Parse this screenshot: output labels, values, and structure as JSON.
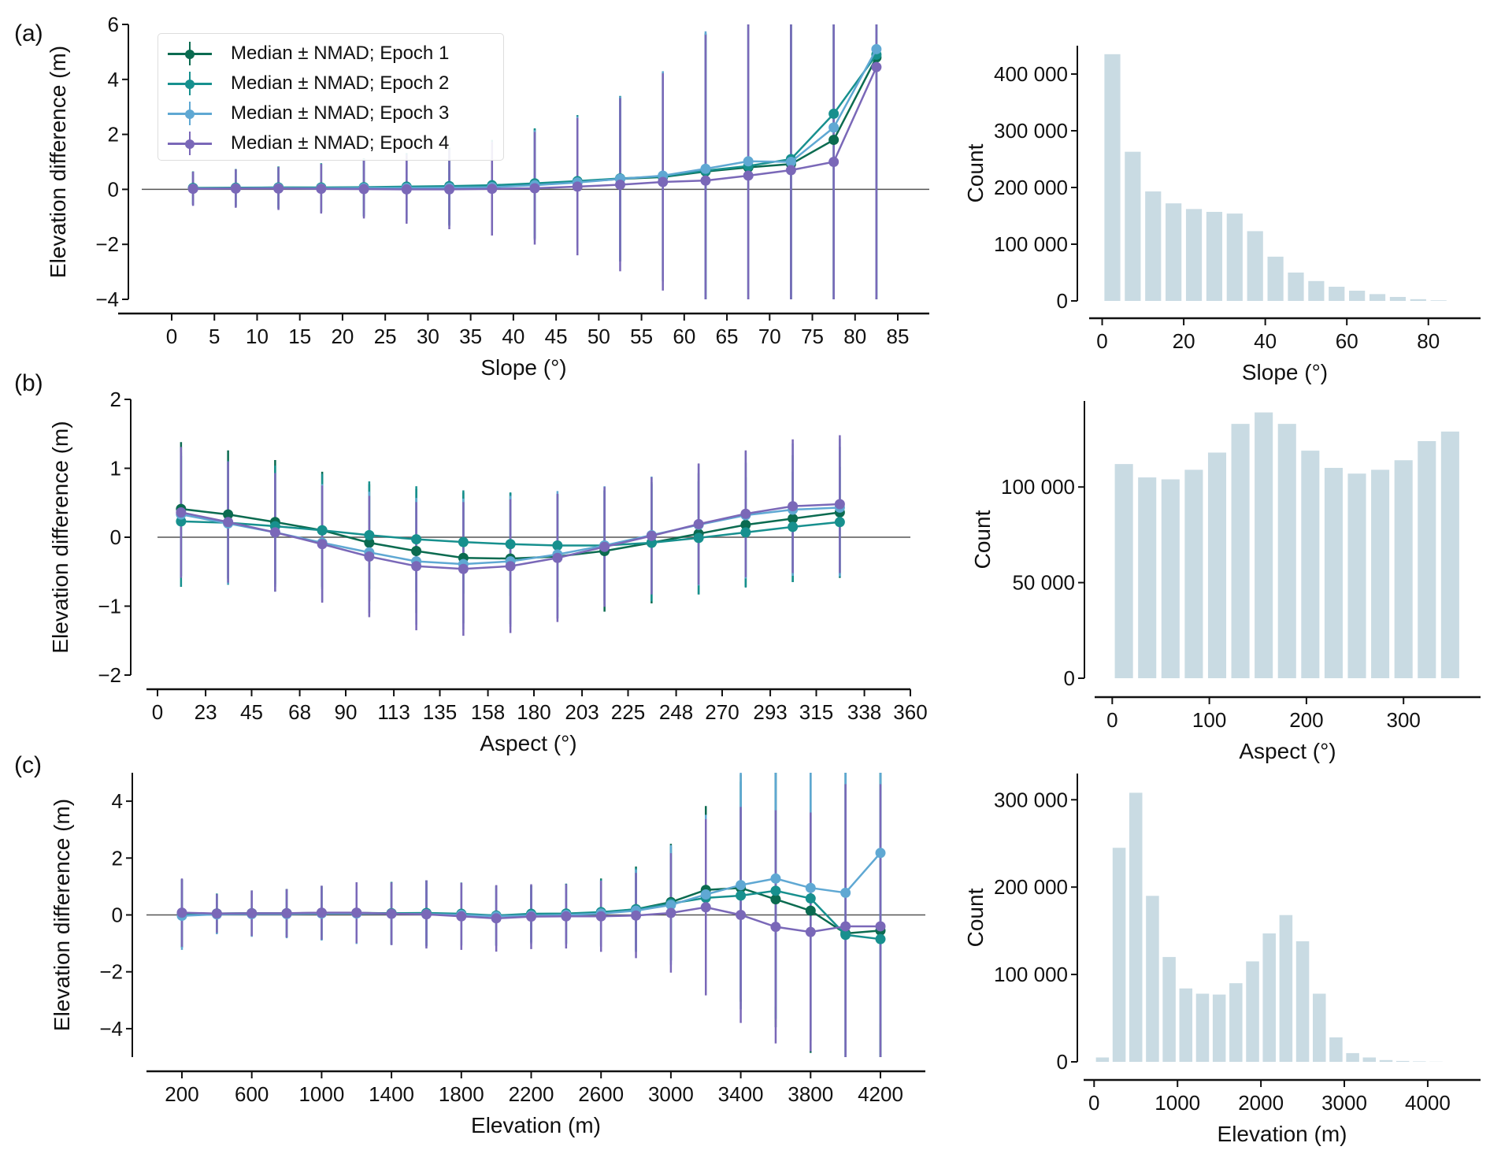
{
  "panel_labels": [
    "(a)",
    "(b)",
    "(c)"
  ],
  "colors": {
    "epoch1": "#0b6b50",
    "epoch2": "#17908e",
    "epoch3": "#5fa8d3",
    "epoch4": "#7a68b8",
    "bars": "#c9dbe3",
    "zero_line": "#555555"
  },
  "legend": {
    "position": "top-left of panel (a)",
    "items": [
      "Median ± NMAD; Epoch 1",
      "Median ± NMAD; Epoch 2",
      "Median ± NMAD; Epoch 3",
      "Median ± NMAD; Epoch 4"
    ]
  },
  "chart_data": [
    {
      "type": "line",
      "panel": "(a)",
      "xlabel": "Slope (°)",
      "ylabel": "Elevation difference (m)",
      "xlim": [
        0,
        85
      ],
      "ylim": [
        -4,
        6
      ],
      "xticks": [
        "0",
        "5",
        "10",
        "15",
        "20",
        "25",
        "30",
        "35",
        "40",
        "45",
        "50",
        "55",
        "60",
        "65",
        "70",
        "75",
        "80",
        "85"
      ],
      "yticks": [
        "-4",
        "-2",
        "0",
        "2",
        "4",
        "6"
      ],
      "x": [
        2.5,
        7.5,
        12.5,
        17.5,
        22.5,
        27.5,
        32.5,
        37.5,
        42.5,
        47.5,
        52.5,
        57.5,
        62.5,
        67.5,
        72.5,
        77.5,
        82.5
      ],
      "series": [
        {
          "name": "Median ± NMAD; Epoch 1",
          "values": [
            0.05,
            0.05,
            0.07,
            0.06,
            0.07,
            0.08,
            0.1,
            0.13,
            0.2,
            0.27,
            0.38,
            0.45,
            0.65,
            0.8,
            0.92,
            1.8,
            4.8
          ],
          "nmad": [
            0.6,
            0.68,
            0.76,
            0.88,
            1.05,
            1.22,
            1.4,
            1.65,
            2.0,
            2.4,
            3.0,
            3.8,
            5.0,
            6,
            7,
            8,
            9
          ]
        },
        {
          "name": "Median ± NMAD; Epoch 2",
          "values": [
            0.05,
            0.06,
            0.07,
            0.07,
            0.08,
            0.1,
            0.12,
            0.15,
            0.22,
            0.3,
            0.4,
            0.47,
            0.68,
            0.85,
            1.1,
            2.75,
            4.9
          ],
          "nmad": [
            0.6,
            0.68,
            0.76,
            0.88,
            1.05,
            1.22,
            1.4,
            1.65,
            2.0,
            2.4,
            3.0,
            3.8,
            5.0,
            6,
            7,
            8,
            9
          ]
        },
        {
          "name": "Median ± NMAD; Epoch 3",
          "values": [
            0.03,
            0.04,
            0.05,
            0.04,
            0.05,
            0.05,
            0.06,
            0.08,
            0.15,
            0.25,
            0.38,
            0.5,
            0.75,
            1.02,
            1.0,
            2.25,
            5.1
          ],
          "nmad": [
            0.6,
            0.68,
            0.76,
            0.88,
            1.05,
            1.22,
            1.4,
            1.65,
            2.0,
            2.4,
            3.0,
            3.8,
            5.0,
            6,
            7,
            8,
            9
          ]
        },
        {
          "name": "Median ± NMAD; Epoch 4",
          "values": [
            0.02,
            0.03,
            0.03,
            0.02,
            0.01,
            0.0,
            0.0,
            0.02,
            0.04,
            0.1,
            0.17,
            0.27,
            0.32,
            0.5,
            0.7,
            1.0,
            4.45
          ],
          "nmad": [
            0.62,
            0.7,
            0.78,
            0.9,
            1.07,
            1.25,
            1.45,
            1.7,
            2.05,
            2.5,
            3.15,
            3.95,
            5.3,
            6.5,
            7.5,
            8.5,
            9.5
          ]
        }
      ]
    },
    {
      "type": "bar",
      "panel": "(a)",
      "xlabel": "Slope (°)",
      "ylabel": "Count",
      "xlim": [
        -3,
        87
      ],
      "ylim": [
        0,
        450000
      ],
      "xticks": [
        "0",
        "20",
        "40",
        "60",
        "80"
      ],
      "xtick_values": [
        0,
        20,
        40,
        60,
        80
      ],
      "yticks": [
        "0",
        "100 000",
        "200 000",
        "300 000",
        "400 000"
      ],
      "ytick_values": [
        0,
        100000,
        200000,
        300000,
        400000
      ],
      "bin_width": 5,
      "categories": [
        2.5,
        7.5,
        12.5,
        17.5,
        22.5,
        27.5,
        32.5,
        37.5,
        42.5,
        47.5,
        52.5,
        57.5,
        62.5,
        67.5,
        72.5,
        77.5,
        82.5
      ],
      "values": [
        435000,
        263000,
        193000,
        172000,
        162000,
        157000,
        154000,
        123000,
        78000,
        50000,
        35000,
        25000,
        18000,
        12000,
        7000,
        3000,
        1000
      ]
    },
    {
      "type": "line",
      "panel": "(b)",
      "xlabel": "Aspect (°)",
      "ylabel": "Elevation difference (m)",
      "xlim": [
        0,
        360
      ],
      "ylim": [
        -2,
        2
      ],
      "xticks": [
        "0",
        "23",
        "45",
        "68",
        "90",
        "113",
        "135",
        "158",
        "180",
        "203",
        "225",
        "248",
        "270",
        "293",
        "315",
        "338",
        "360"
      ],
      "yticks": [
        "-2",
        "-1",
        "0",
        "1",
        "2"
      ],
      "x": [
        11.25,
        33.75,
        56.25,
        78.75,
        101.25,
        123.75,
        146.25,
        168.75,
        191.25,
        213.75,
        236.25,
        258.75,
        281.25,
        303.75,
        326.25
      ],
      "series": [
        {
          "name": "Median ± NMAD; Epoch 1",
          "values": [
            0.41,
            0.33,
            0.22,
            0.1,
            -0.08,
            -0.2,
            -0.3,
            -0.31,
            -0.28,
            -0.2,
            -0.08,
            0.05,
            0.18,
            0.27,
            0.36
          ],
          "nmad": [
            0.97,
            0.93,
            0.9,
            0.85,
            0.85,
            0.9,
            0.95,
            0.95,
            0.9,
            0.88,
            0.88,
            0.88,
            0.9,
            0.92,
            0.95
          ]
        },
        {
          "name": "Median ± NMAD; Epoch 2",
          "values": [
            0.23,
            0.21,
            0.16,
            0.1,
            0.03,
            -0.03,
            -0.07,
            -0.1,
            -0.12,
            -0.12,
            -0.08,
            -0.01,
            0.07,
            0.15,
            0.22
          ],
          "nmad": [
            0.95,
            0.9,
            0.88,
            0.82,
            0.78,
            0.77,
            0.75,
            0.75,
            0.75,
            0.8,
            0.85,
            0.82,
            0.8,
            0.8,
            0.8
          ]
        },
        {
          "name": "Median ± NMAD; Epoch 3",
          "values": [
            0.33,
            0.2,
            0.07,
            -0.08,
            -0.22,
            -0.35,
            -0.39,
            -0.35,
            -0.25,
            -0.12,
            0.03,
            0.18,
            0.32,
            0.4,
            0.43
          ],
          "nmad": [
            0.9,
            0.88,
            0.86,
            0.85,
            0.88,
            0.92,
            0.95,
            0.95,
            0.92,
            0.86,
            0.85,
            0.88,
            0.92,
            0.96,
            1.0
          ]
        },
        {
          "name": "Median ± NMAD; Epoch 4",
          "values": [
            0.36,
            0.22,
            0.07,
            -0.1,
            -0.28,
            -0.42,
            -0.46,
            -0.42,
            -0.3,
            -0.14,
            0.02,
            0.19,
            0.34,
            0.45,
            0.48
          ],
          "nmad": [
            0.95,
            0.88,
            0.86,
            0.85,
            0.88,
            0.93,
            0.97,
            0.97,
            0.93,
            0.87,
            0.85,
            0.88,
            0.92,
            0.97,
            1.0
          ]
        }
      ]
    },
    {
      "type": "bar",
      "panel": "(b)",
      "xlabel": "Aspect (°)",
      "ylabel": "Count",
      "xlim": [
        -10,
        355
      ],
      "ylim": [
        0,
        145000
      ],
      "xticks": [
        "0",
        "100",
        "200",
        "300"
      ],
      "xtick_values": [
        0,
        100,
        200,
        300
      ],
      "yticks": [
        "0",
        "50 000",
        "100 000"
      ],
      "ytick_values": [
        0,
        50000,
        100000
      ],
      "bin_width": 24,
      "categories": [
        12,
        36,
        60,
        84,
        108,
        132,
        156,
        180,
        204,
        228,
        252,
        276,
        300,
        324,
        348
      ],
      "values": [
        112000,
        105000,
        104000,
        109000,
        118000,
        133000,
        139000,
        133000,
        119000,
        110000,
        107000,
        109000,
        114000,
        124000,
        129000
      ]
    },
    {
      "type": "line",
      "panel": "(c)",
      "xlabel": "Elevation (m)",
      "ylabel": "Elevation difference (m)",
      "xlim": [
        200,
        4200
      ],
      "ylim": [
        -5,
        5
      ],
      "xticks": [
        "200",
        "600",
        "1000",
        "1400",
        "1800",
        "2200",
        "2600",
        "3000",
        "3400",
        "3800",
        "4200"
      ],
      "yticks": [
        "-4",
        "-2",
        "0",
        "2",
        "4"
      ],
      "x": [
        200,
        400,
        600,
        800,
        1000,
        1200,
        1400,
        1600,
        1800,
        2000,
        2200,
        2400,
        2600,
        2800,
        3000,
        3200,
        3400,
        3600,
        3800,
        4000,
        4200
      ],
      "series": [
        {
          "name": "Median ± NMAD; Epoch 1",
          "values": [
            0.05,
            0.05,
            0.06,
            0.06,
            0.07,
            0.07,
            0.06,
            0.06,
            0.03,
            -0.03,
            0.03,
            0.04,
            0.08,
            0.2,
            0.45,
            0.88,
            0.95,
            0.55,
            0.15,
            -0.65,
            -0.55
          ],
          "nmad": [
            1.2,
            0.7,
            0.8,
            0.85,
            0.95,
            1.07,
            1.1,
            1.15,
            1.1,
            1.05,
            1.0,
            1.05,
            1.2,
            1.5,
            2.05,
            2.95,
            4,
            4.5,
            5,
            6,
            6
          ]
        },
        {
          "name": "Median ± NMAD; Epoch 2",
          "values": [
            0.05,
            0.05,
            0.06,
            0.06,
            0.07,
            0.07,
            0.06,
            0.07,
            0.04,
            -0.02,
            0.04,
            0.05,
            0.1,
            0.2,
            0.4,
            0.6,
            0.68,
            0.85,
            0.58,
            -0.7,
            -0.85
          ],
          "nmad": [
            1.2,
            0.7,
            0.8,
            0.85,
            0.95,
            1.07,
            1.1,
            1.15,
            1.1,
            1.05,
            1.0,
            1.05,
            1.15,
            1.45,
            2.0,
            2.8,
            4,
            4.5,
            5,
            6,
            6
          ]
        },
        {
          "name": "Median ± NMAD; Epoch 3",
          "values": [
            -0.03,
            0.02,
            0.03,
            0.03,
            0.05,
            0.05,
            0.04,
            0.03,
            0.0,
            -0.05,
            -0.02,
            0.0,
            0.05,
            0.15,
            0.35,
            0.72,
            1.05,
            1.28,
            0.95,
            0.78,
            2.18
          ],
          "nmad": [
            1.2,
            0.7,
            0.8,
            0.85,
            0.95,
            1.07,
            1.1,
            1.15,
            1.1,
            1.05,
            1.0,
            1.05,
            1.15,
            1.45,
            2.1,
            2.8,
            4,
            4.5,
            5,
            6,
            6
          ]
        },
        {
          "name": "Median ± NMAD; Epoch 4",
          "values": [
            0.08,
            0.05,
            0.06,
            0.06,
            0.08,
            0.08,
            0.04,
            0.02,
            -0.05,
            -0.12,
            -0.06,
            -0.05,
            -0.05,
            -0.02,
            0.07,
            0.27,
            0.0,
            -0.42,
            -0.6,
            -0.4,
            -0.4
          ],
          "nmad": [
            1.2,
            0.68,
            0.8,
            0.85,
            0.95,
            1.07,
            1.1,
            1.2,
            1.18,
            1.17,
            1.14,
            1.13,
            1.25,
            1.5,
            2.1,
            3.1,
            3.8,
            4.1,
            4.2,
            5,
            5
          ]
        }
      ]
    },
    {
      "type": "bar",
      "panel": "(c)",
      "xlabel": "Elevation (m)",
      "ylabel": "Count",
      "xlim": [
        -50,
        4350
      ],
      "ylim": [
        0,
        330000
      ],
      "xticks": [
        "0",
        "1000",
        "2000",
        "3000",
        "4000"
      ],
      "xtick_values": [
        0,
        1000,
        2000,
        3000,
        4000
      ],
      "yticks": [
        "0",
        "100 000",
        "200 000",
        "300 000"
      ],
      "ytick_values": [
        0,
        100000,
        200000,
        300000
      ],
      "bin_width": 200,
      "categories": [
        100,
        300,
        500,
        700,
        900,
        1100,
        1300,
        1500,
        1700,
        1900,
        2100,
        2300,
        2500,
        2700,
        2900,
        3100,
        3300,
        3500,
        3700,
        3900,
        4100
      ],
      "values": [
        5000,
        245000,
        308000,
        190000,
        120000,
        84000,
        78000,
        77000,
        90000,
        115000,
        147000,
        168000,
        138000,
        78000,
        28000,
        10000,
        5000,
        2000,
        1000,
        500,
        200
      ]
    }
  ]
}
